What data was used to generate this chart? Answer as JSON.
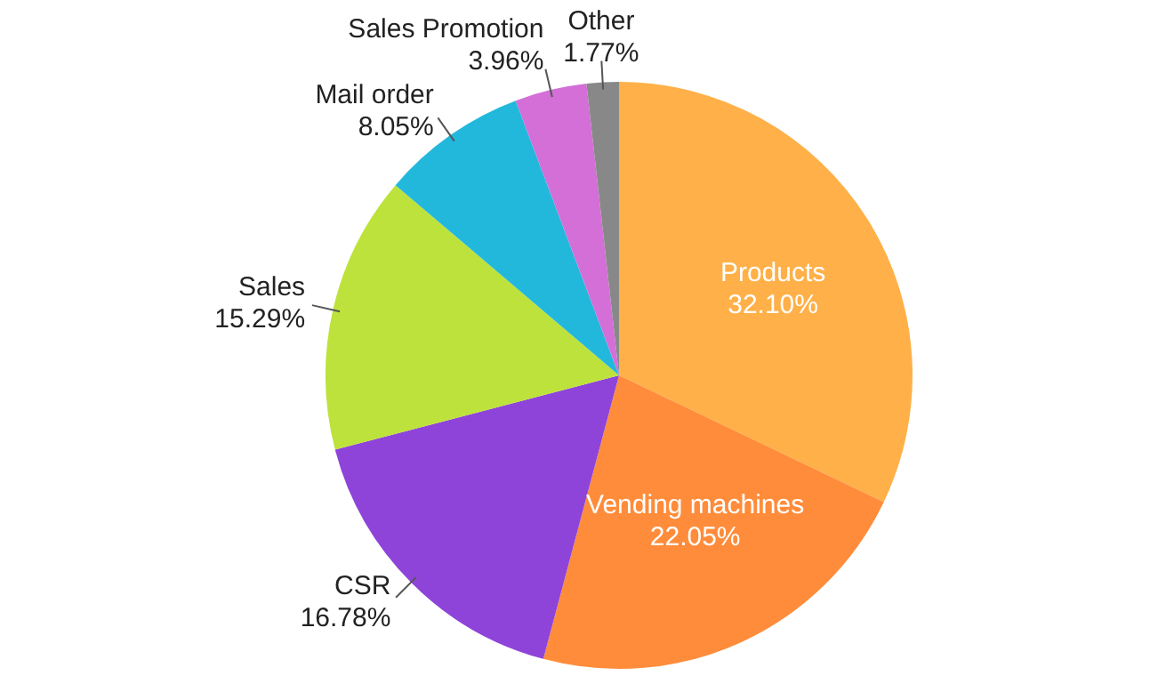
{
  "chart_data": {
    "type": "pie",
    "categories": [
      "Products",
      "Vending machines",
      "CSR",
      "Sales",
      "Mail order",
      "Sales Promotion",
      "Other"
    ],
    "values": [
      32.1,
      22.05,
      16.78,
      15.29,
      8.05,
      3.96,
      1.77
    ],
    "value_labels": [
      "32.10%",
      "22.05%",
      "16.78%",
      "15.29%",
      "8.05%",
      "3.96%",
      "1.77%"
    ],
    "colors": [
      "#ffb048",
      "#ff8c3a",
      "#8e44d8",
      "#bde23c",
      "#22b8dc",
      "#d36fd6",
      "#888888"
    ],
    "legend": false
  }
}
